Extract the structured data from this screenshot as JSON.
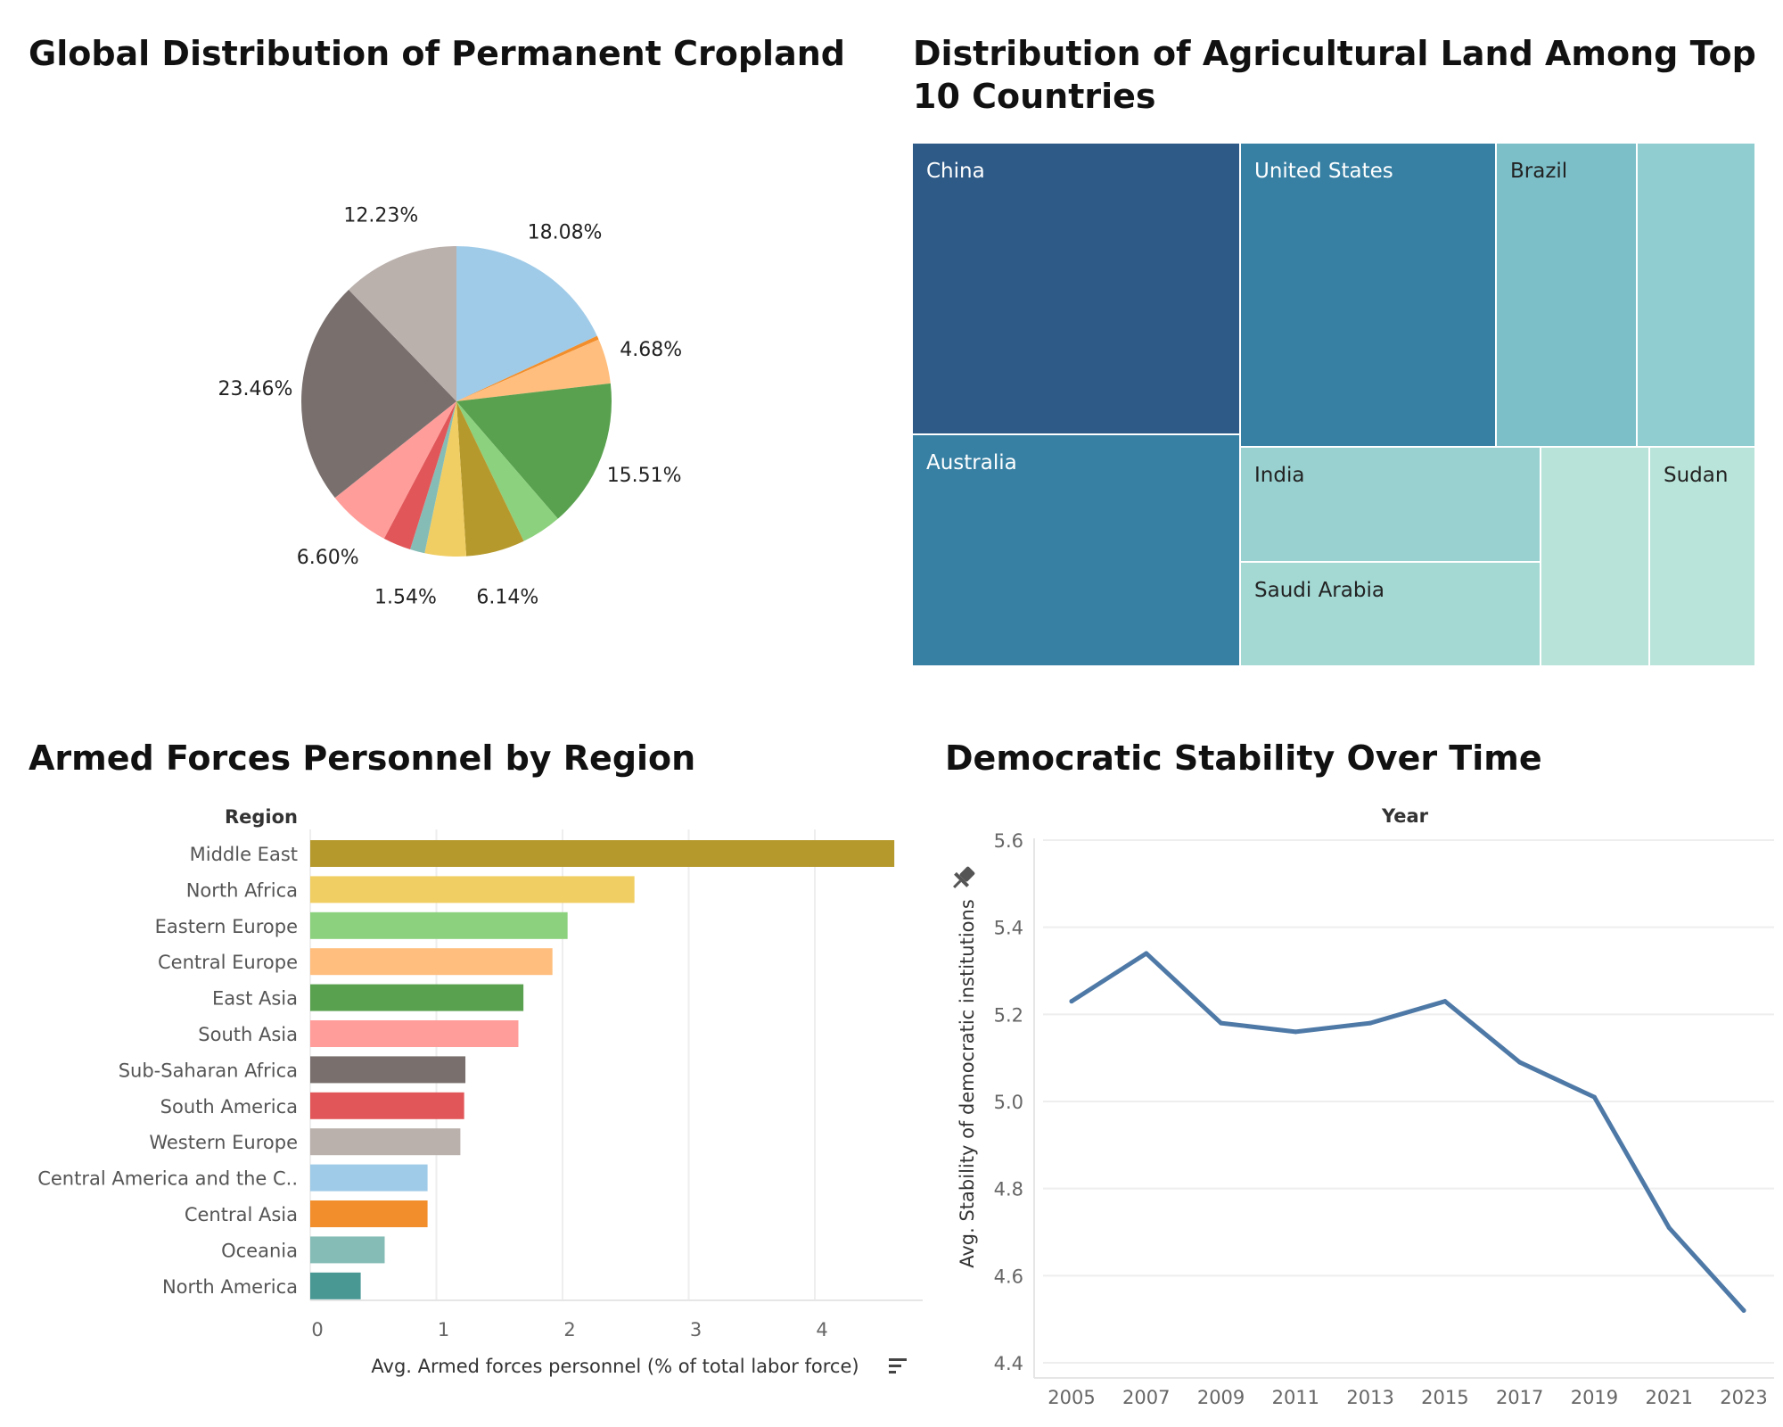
{
  "charts": {
    "pie": {
      "title": "Global Distribution of Permanent Cropland"
    },
    "treemap": {
      "title": "Distribution of Agricultural Land Among Top 10 Countries"
    },
    "bar": {
      "title": "Armed Forces Personnel by Region"
    },
    "line": {
      "title": "Democratic Stability Over Time"
    }
  },
  "chart_data": [
    {
      "type": "pie",
      "title": "Global Distribution of Permanent Cropland",
      "slices": [
        {
          "value": 18.08,
          "label": "18.08%",
          "color": "#a0cbe8"
        },
        {
          "value": 0.4,
          "label": "",
          "color": "#f28e2b"
        },
        {
          "value": 4.68,
          "label": "4.68%",
          "color": "#ffbe7d"
        },
        {
          "value": 15.51,
          "label": "15.51%",
          "color": "#59a14f"
        },
        {
          "value": 4.2,
          "label": "",
          "color": "#8cd17d"
        },
        {
          "value": 6.14,
          "label": "6.14%",
          "color": "#b6992d"
        },
        {
          "value": 4.3,
          "label": "",
          "color": "#f1ce63"
        },
        {
          "value": 1.54,
          "label": "1.54%",
          "color": "#86bcb6"
        },
        {
          "value": 2.9,
          "label": "",
          "color": "#e15759"
        },
        {
          "value": 6.6,
          "label": "6.60%",
          "color": "#ff9d9a"
        },
        {
          "value": 23.46,
          "label": "23.46%",
          "color": "#79706e"
        },
        {
          "value": 12.23,
          "label": "12.23%",
          "color": "#bab0ac"
        }
      ]
    },
    {
      "type": "treemap",
      "title": "Distribution of Agricultural Land Among Top 10 Countries",
      "items": [
        {
          "name": "China",
          "color": "#2e5a87",
          "label_color": "#ffffff"
        },
        {
          "name": "Australia",
          "color": "#3780a4",
          "label_color": "#ffffff"
        },
        {
          "name": "United States",
          "color": "#3780a4",
          "label_color": "#ffffff"
        },
        {
          "name": "Brazil",
          "color": "#7cbfc9",
          "label_color": "#222222"
        },
        {
          "name": "",
          "color": "#8fcdd0",
          "label_color": "#222222"
        },
        {
          "name": "India",
          "color": "#99d1d0",
          "label_color": "#222222"
        },
        {
          "name": "Saudi Arabia",
          "color": "#a3d8d3",
          "label_color": "#222222"
        },
        {
          "name": "",
          "color": "#b7e3d8",
          "label_color": "#222222"
        },
        {
          "name": "Sudan",
          "color": "#b9e4d9",
          "label_color": "#222222"
        }
      ]
    },
    {
      "type": "bar",
      "title": "Armed Forces Personnel by Region",
      "category_header": "Region",
      "xlabel": "Avg. Armed forces personnel (% of total labor force)",
      "xlim": [
        0,
        4.8
      ],
      "xticks": [
        0,
        1,
        2,
        3,
        4
      ],
      "categories": [
        "Middle East",
        "North Africa",
        "Eastern Europe",
        "Central Europe",
        "East Asia",
        "South Asia",
        "Sub-Saharan Africa",
        "South America",
        "Western Europe",
        "Central America and the C..",
        "Central Asia",
        "Oceania",
        "North America"
      ],
      "values": [
        4.63,
        2.57,
        2.04,
        1.92,
        1.69,
        1.65,
        1.23,
        1.22,
        1.19,
        0.93,
        0.93,
        0.59,
        0.4
      ],
      "colors": [
        "#b6992d",
        "#f1ce63",
        "#8cd17d",
        "#ffbe7d",
        "#59a14f",
        "#ff9d9a",
        "#79706e",
        "#e15759",
        "#bab0ac",
        "#a0cbe8",
        "#f28e2b",
        "#86bcb6",
        "#499894"
      ]
    },
    {
      "type": "line",
      "title": "Democratic Stability Over Time",
      "xlabel": "Year",
      "ylabel": "Avg. Stability of democratic institutions",
      "ylim": [
        4.4,
        5.6
      ],
      "yticks": [
        "4.4",
        "4.6",
        "4.8",
        "5.0",
        "5.2",
        "5.4",
        "5.6"
      ],
      "x": [
        2005,
        2007,
        2009,
        2011,
        2013,
        2015,
        2017,
        2019,
        2021,
        2023
      ],
      "y": [
        5.23,
        5.34,
        5.18,
        5.16,
        5.18,
        5.23,
        5.09,
        5.01,
        4.71,
        4.52
      ],
      "color": "#4e79a7"
    }
  ]
}
